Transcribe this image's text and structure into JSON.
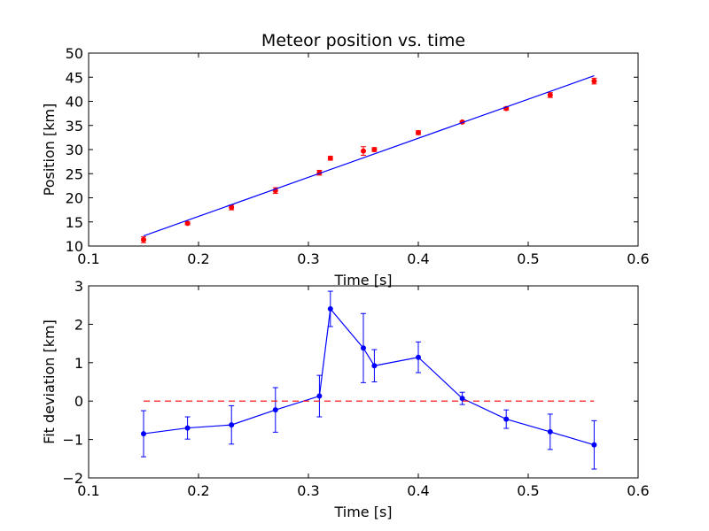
{
  "chart_data": [
    {
      "type": "scatter",
      "title": "Meteor position vs. time",
      "xlabel": "Time [s]",
      "ylabel": "Position [km]",
      "xlim": [
        0.1,
        0.6
      ],
      "ylim": [
        10,
        50
      ],
      "xticks": [
        "0.1",
        "0.2",
        "0.3",
        "0.4",
        "0.5",
        "0.6"
      ],
      "yticks": [
        "10",
        "15",
        "20",
        "25",
        "30",
        "35",
        "40",
        "45",
        "50"
      ],
      "grid": false,
      "colors": {
        "points": "#ff0000",
        "fit": "#0000ff"
      },
      "series": [
        {
          "kind": "errorbar-points",
          "x": [
            0.15,
            0.19,
            0.23,
            0.27,
            0.31,
            0.32,
            0.35,
            0.36,
            0.4,
            0.44,
            0.48,
            0.52,
            0.56
          ],
          "y": [
            11.3,
            14.7,
            18.0,
            21.5,
            25.2,
            28.2,
            29.7,
            30.0,
            33.5,
            35.7,
            38.5,
            41.3,
            44.2
          ],
          "err": [
            0.6,
            0.3,
            0.5,
            0.6,
            0.5,
            0.4,
            0.9,
            0.4,
            0.4,
            0.2,
            0.3,
            0.5,
            0.6
          ]
        },
        {
          "kind": "fit-line",
          "x": [
            0.15,
            0.56
          ],
          "y": [
            12.1,
            45.3
          ]
        }
      ]
    },
    {
      "type": "line",
      "title": "",
      "xlabel": "Time [s]",
      "ylabel": "Fit deviation [km]",
      "xlim": [
        0.1,
        0.6
      ],
      "ylim": [
        -2,
        3
      ],
      "xticks": [
        "0.1",
        "0.2",
        "0.3",
        "0.4",
        "0.5",
        "0.6"
      ],
      "yticks": [
        "−2",
        "−1",
        "0",
        "1",
        "2",
        "3"
      ],
      "grid": false,
      "colors": {
        "line": "#0000ff",
        "reference": "#ff0000"
      },
      "series": [
        {
          "kind": "errorbar-line",
          "x": [
            0.15,
            0.19,
            0.23,
            0.27,
            0.31,
            0.32,
            0.35,
            0.36,
            0.4,
            0.44,
            0.48,
            0.52,
            0.56
          ],
          "y": [
            -0.85,
            -0.7,
            -0.62,
            -0.23,
            0.13,
            2.4,
            1.38,
            0.92,
            1.14,
            0.07,
            -0.47,
            -0.8,
            -1.14
          ],
          "err": [
            0.6,
            0.29,
            0.5,
            0.58,
            0.54,
            0.46,
            0.9,
            0.42,
            0.4,
            0.16,
            0.24,
            0.46,
            0.63
          ]
        },
        {
          "kind": "reference-dashed",
          "x": [
            0.15,
            0.56
          ],
          "y": [
            0,
            0
          ]
        }
      ]
    }
  ]
}
